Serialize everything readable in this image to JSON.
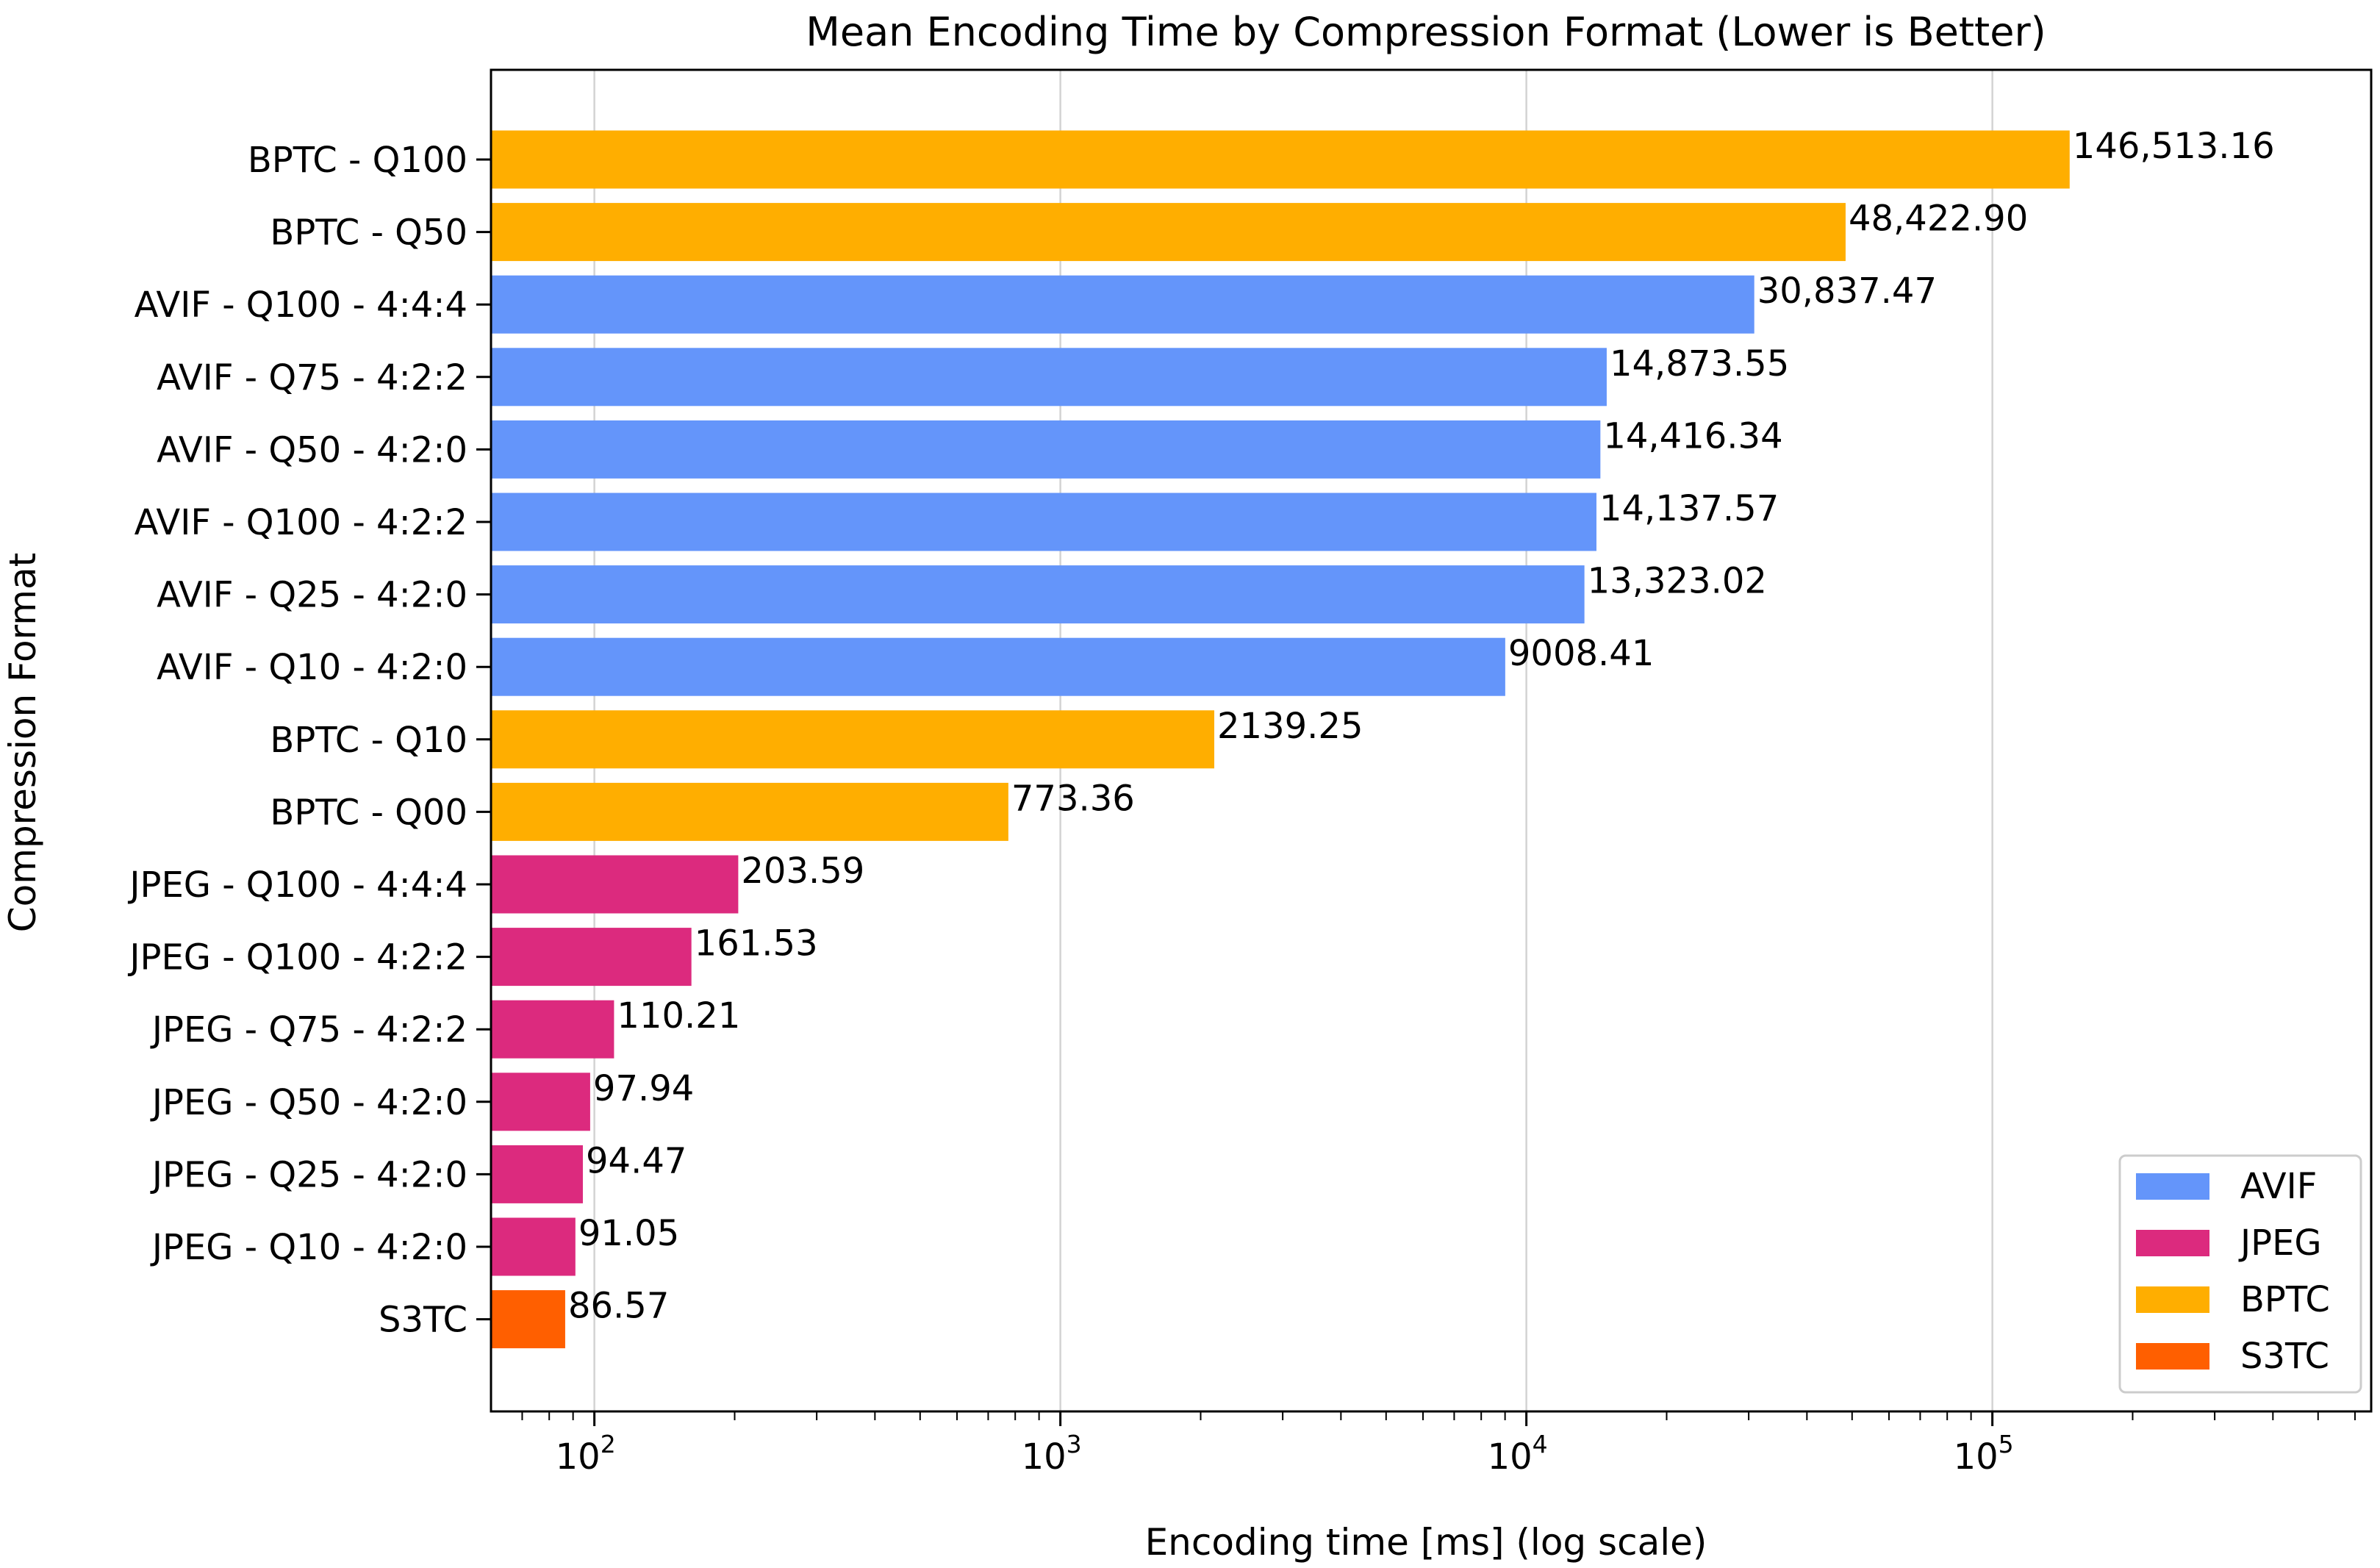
{
  "chart_data": {
    "type": "bar",
    "orientation": "horizontal",
    "title": "Mean Encoding Time by Compression Format (Lower is Better)",
    "xlabel": "Encoding time [ms] (log scale)",
    "ylabel": "Compression Format",
    "x_scale": "log",
    "xlim": [
      60,
      650000
    ],
    "x_ticks": [
      {
        "value": 100,
        "base": "10",
        "exp": "2"
      },
      {
        "value": 1000,
        "base": "10",
        "exp": "3"
      },
      {
        "value": 10000,
        "base": "10",
        "exp": "4"
      },
      {
        "value": 100000,
        "base": "10",
        "exp": "5"
      }
    ],
    "grid": "x-major",
    "legend_position": "lower right",
    "legend": [
      {
        "name": "AVIF",
        "color": "#6495fa"
      },
      {
        "name": "JPEG",
        "color": "#dc2a7e"
      },
      {
        "name": "BPTC",
        "color": "#ffae00"
      },
      {
        "name": "S3TC",
        "color": "#ff5f00"
      }
    ],
    "bars": [
      {
        "category": "BPTC - Q100",
        "value": 146513.16,
        "label": "146,513.16",
        "group": "BPTC"
      },
      {
        "category": "BPTC - Q50",
        "value": 48422.9,
        "label": "48,422.90",
        "group": "BPTC"
      },
      {
        "category": "AVIF - Q100 - 4:4:4",
        "value": 30837.47,
        "label": "30,837.47",
        "group": "AVIF"
      },
      {
        "category": "AVIF - Q75 - 4:2:2",
        "value": 14873.55,
        "label": "14,873.55",
        "group": "AVIF"
      },
      {
        "category": "AVIF - Q50 - 4:2:0",
        "value": 14416.34,
        "label": "14,416.34",
        "group": "AVIF"
      },
      {
        "category": "AVIF - Q100 - 4:2:2",
        "value": 14137.57,
        "label": "14,137.57",
        "group": "AVIF"
      },
      {
        "category": "AVIF - Q25 - 4:2:0",
        "value": 13323.02,
        "label": "13,323.02",
        "group": "AVIF"
      },
      {
        "category": "AVIF - Q10 - 4:2:0",
        "value": 9008.41,
        "label": "9008.41",
        "group": "AVIF"
      },
      {
        "category": "BPTC - Q10",
        "value": 2139.25,
        "label": "2139.25",
        "group": "BPTC"
      },
      {
        "category": "BPTC - Q00",
        "value": 773.36,
        "label": "773.36",
        "group": "BPTC"
      },
      {
        "category": "JPEG - Q100 - 4:4:4",
        "value": 203.59,
        "label": "203.59",
        "group": "JPEG"
      },
      {
        "category": "JPEG - Q100 - 4:2:2",
        "value": 161.53,
        "label": "161.53",
        "group": "JPEG"
      },
      {
        "category": "JPEG - Q75 - 4:2:2",
        "value": 110.21,
        "label": "110.21",
        "group": "JPEG"
      },
      {
        "category": "JPEG - Q50 - 4:2:0",
        "value": 97.94,
        "label": "97.94",
        "group": "JPEG"
      },
      {
        "category": "JPEG - Q25 - 4:2:0",
        "value": 94.47,
        "label": "94.47",
        "group": "JPEG"
      },
      {
        "category": "JPEG - Q10 - 4:2:0",
        "value": 91.05,
        "label": "91.05",
        "group": "JPEG"
      },
      {
        "category": "S3TC",
        "value": 86.57,
        "label": "86.57",
        "group": "S3TC"
      }
    ]
  }
}
